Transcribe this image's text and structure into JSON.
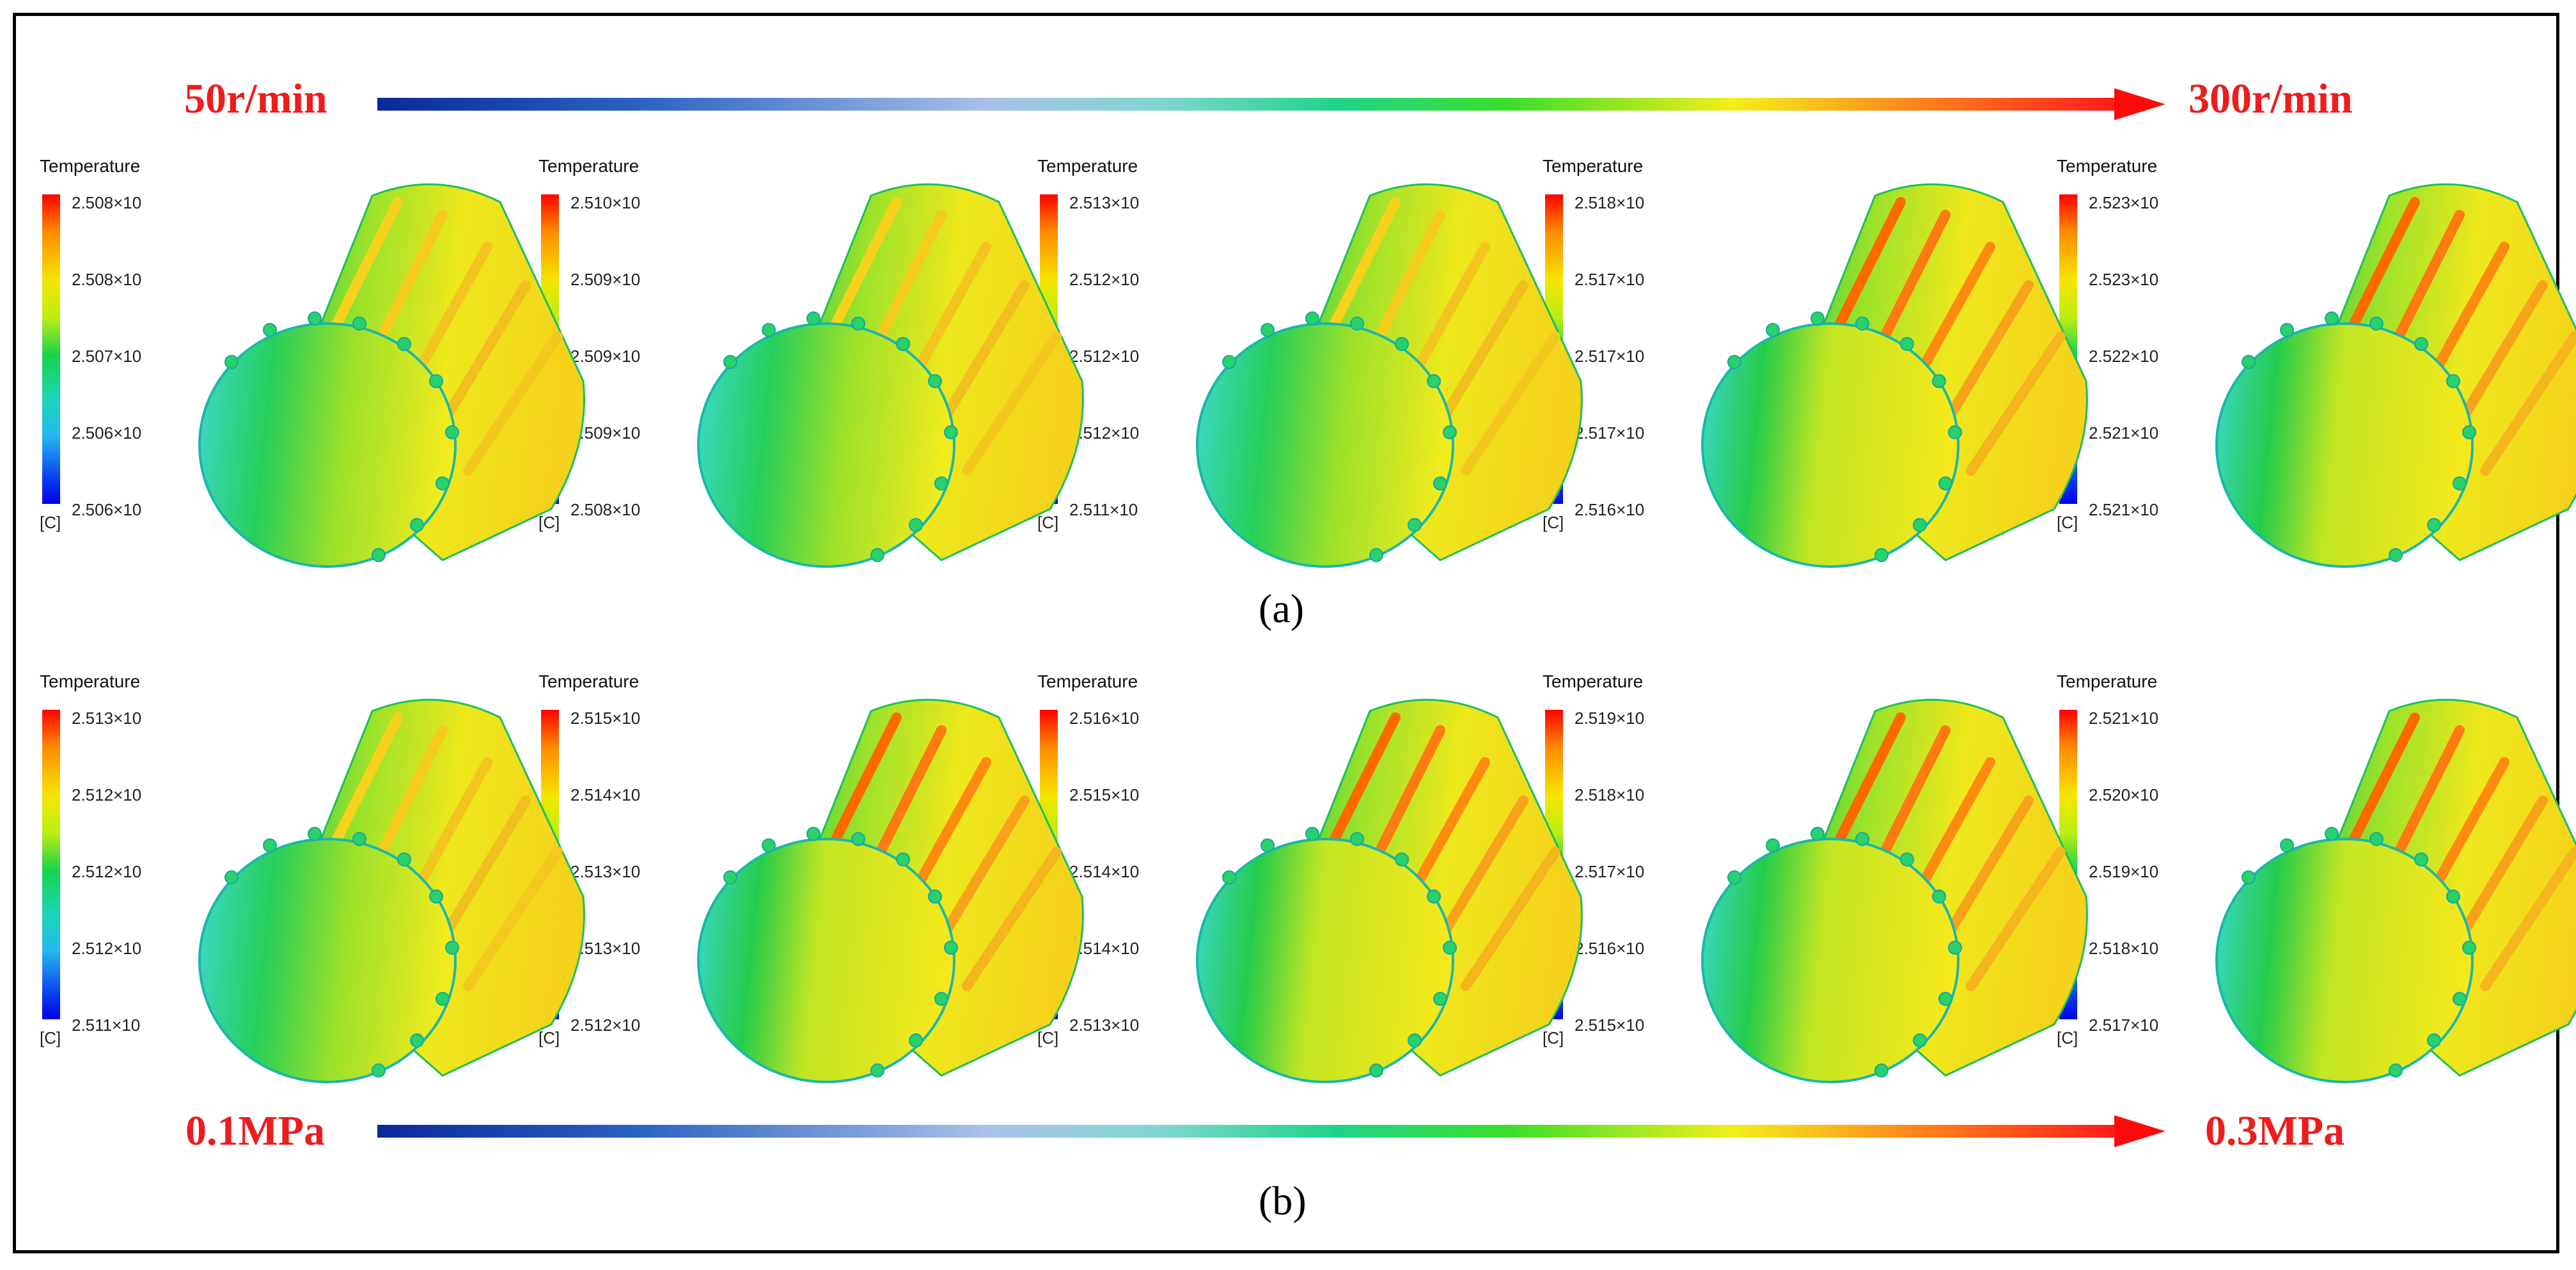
{
  "top_arrow": {
    "start_label": "50r/min",
    "end_label": "300r/min"
  },
  "bottom_arrow": {
    "start_label": "0.1MPa",
    "end_label": "0.3MPa"
  },
  "captions": {
    "a": "(a)",
    "b": "(b)"
  },
  "legend_title": "Temperature",
  "legend_unit": "[C]",
  "row_a": [
    {
      "ticks": [
        "2.508×10",
        "2.508×10",
        "2.507×10",
        "2.506×10",
        "2.506×10"
      ]
    },
    {
      "ticks": [
        "2.510×10",
        "2.509×10",
        "2.509×10",
        "2.509×10",
        "2.508×10"
      ]
    },
    {
      "ticks": [
        "2.513×10",
        "2.512×10",
        "2.512×10",
        "2.512×10",
        "2.511×10"
      ]
    },
    {
      "ticks": [
        "2.518×10",
        "2.517×10",
        "2.517×10",
        "2.517×10",
        "2.516×10"
      ]
    },
    {
      "ticks": [
        "2.523×10",
        "2.523×10",
        "2.522×10",
        "2.521×10",
        "2.521×10"
      ]
    }
  ],
  "row_b": [
    {
      "ticks": [
        "2.513×10",
        "2.512×10",
        "2.512×10",
        "2.512×10",
        "2.511×10"
      ]
    },
    {
      "ticks": [
        "2.515×10",
        "2.514×10",
        "2.513×10",
        "2.513×10",
        "2.512×10"
      ]
    },
    {
      "ticks": [
        "2.516×10",
        "2.515×10",
        "2.514×10",
        "2.514×10",
        "2.513×10"
      ]
    },
    {
      "ticks": [
        "2.519×10",
        "2.518×10",
        "2.517×10",
        "2.516×10",
        "2.515×10"
      ]
    },
    {
      "ticks": [
        "2.521×10",
        "2.520×10",
        "2.519×10",
        "2.518×10",
        "2.517×10"
      ]
    }
  ],
  "colors": {
    "label_red": "#ee1c1c",
    "arrow_head": "#ff0a0a",
    "frame": "#000000"
  }
}
